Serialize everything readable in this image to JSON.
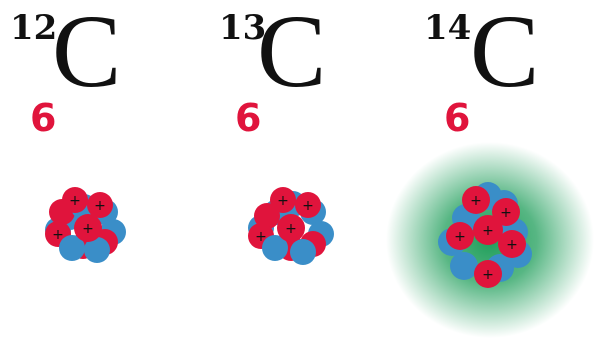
{
  "isotopes": [
    {
      "mass_number": "12",
      "symbol": "C",
      "atomic_number": "6",
      "glow": false
    },
    {
      "mass_number": "13",
      "symbol": "C",
      "atomic_number": "6",
      "glow": false
    },
    {
      "mass_number": "14",
      "symbol": "C",
      "atomic_number": "6",
      "glow": true
    }
  ],
  "colors": {
    "proton": "#e0143c",
    "neutron": "#3a8ec8",
    "glow": "#1f9e5a",
    "text": "#111111"
  },
  "icons": {
    "proton": "plus-sign"
  }
}
